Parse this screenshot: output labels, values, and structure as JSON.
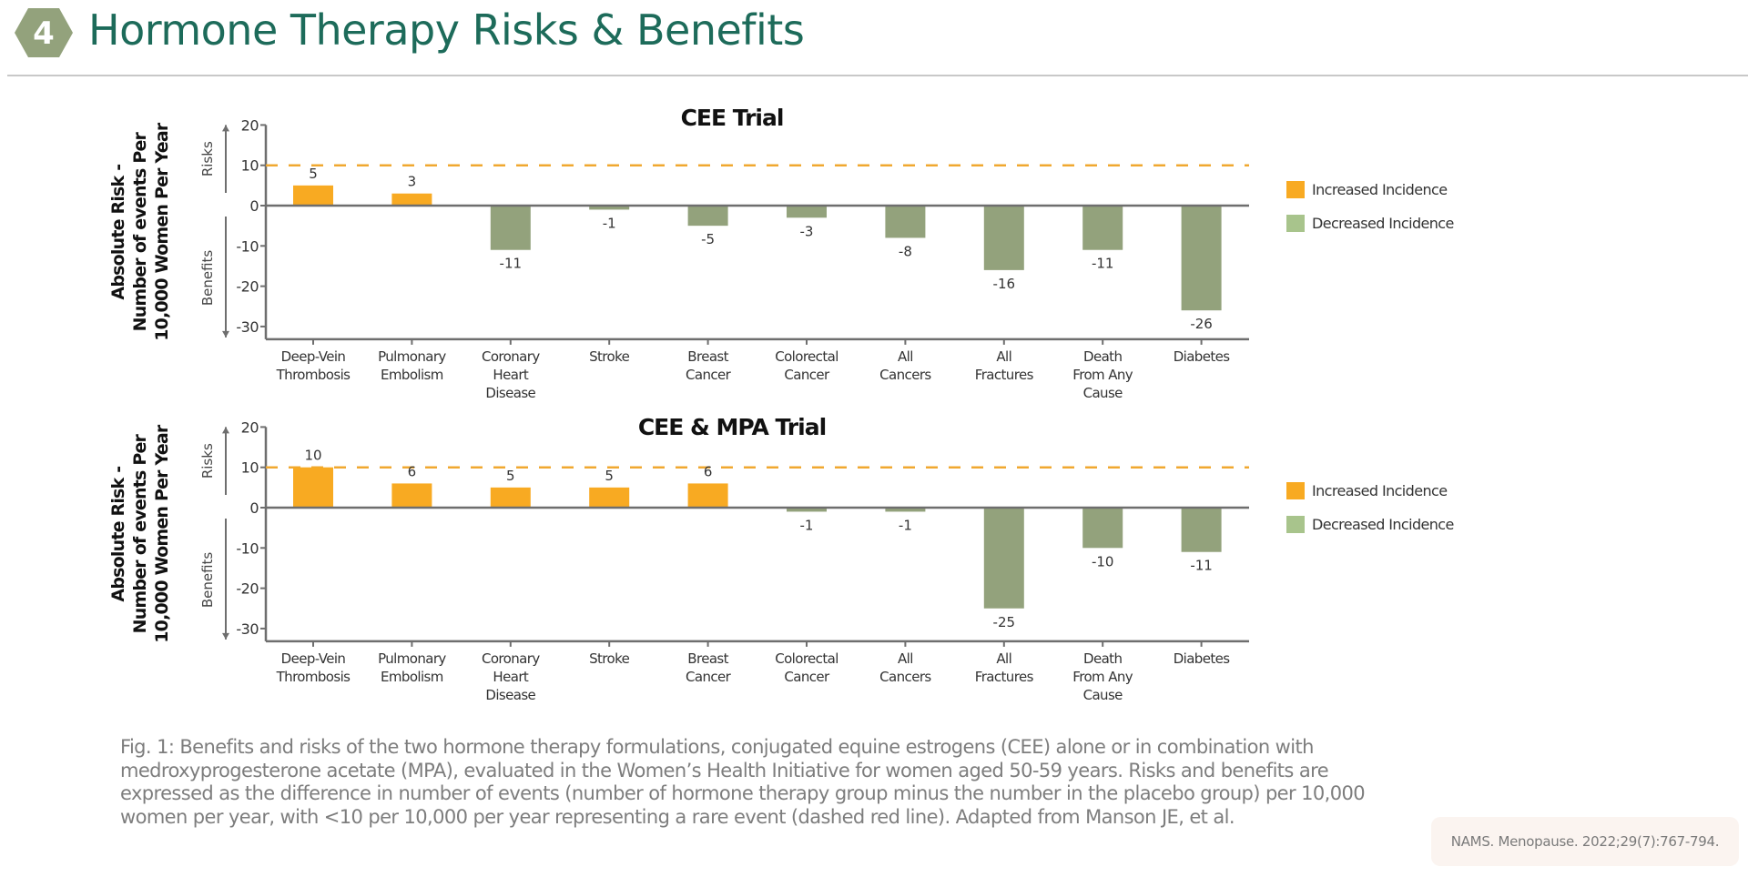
{
  "header": {
    "section_number": "4",
    "title": "Hormone Therapy Risks & Benefits"
  },
  "colors": {
    "title": "#1d6b5a",
    "hexagon": "#93a27c",
    "increased": "#f8aa22",
    "decreased_bar": "#93a27c",
    "decreased_legend": "#a8c48c",
    "rare_line": "#f0a830",
    "axis": "#6e6e6e"
  },
  "chart_data": [
    {
      "type": "bar",
      "title": "CEE Trial",
      "ylabel_lines": [
        "Absolute Risk -",
        "Number of events Per",
        "10,000 Women Per Year"
      ],
      "risks_label": "Risks",
      "benefits_label": "Benefits",
      "categories": [
        [
          "Deep-Vein",
          "Thrombosis"
        ],
        [
          "Pulmonary",
          "Embolism"
        ],
        [
          "Coronary",
          "Heart",
          "Disease"
        ],
        [
          "Stroke"
        ],
        [
          "Breast",
          "Cancer"
        ],
        [
          "Colorectal",
          "Cancer"
        ],
        [
          "All",
          "Cancers"
        ],
        [
          "All",
          "Fractures"
        ],
        [
          "Death",
          "From Any",
          "Cause"
        ],
        [
          "Diabetes"
        ]
      ],
      "values": [
        5,
        3,
        -11,
        -1,
        -5,
        -3,
        -8,
        -16,
        -11,
        -26
      ],
      "ylim": [
        -30,
        20
      ],
      "yticks": [
        20,
        10,
        0,
        -10,
        -20,
        -30
      ],
      "reference_line": 10,
      "legend": [
        {
          "label": "Increased Incidence",
          "key": "increased"
        },
        {
          "label": "Decreased Incidence",
          "key": "decreased"
        }
      ],
      "legend_position": "right"
    },
    {
      "type": "bar",
      "title": "CEE & MPA Trial",
      "ylabel_lines": [
        "Absolute Risk -",
        "Number of events Per",
        "10,000 Women Per Year"
      ],
      "risks_label": "Risks",
      "benefits_label": "Benefits",
      "categories": [
        [
          "Deep-Vein",
          "Thrombosis"
        ],
        [
          "Pulmonary",
          "Embolism"
        ],
        [
          "Coronary",
          "Heart",
          "Disease"
        ],
        [
          "Stroke"
        ],
        [
          "Breast",
          "Cancer"
        ],
        [
          "Colorectal",
          "Cancer"
        ],
        [
          "All",
          "Cancers"
        ],
        [
          "All",
          "Fractures"
        ],
        [
          "Death",
          "From Any",
          "Cause"
        ],
        [
          "Diabetes"
        ]
      ],
      "values": [
        10,
        6,
        5,
        5,
        6,
        -1,
        -1,
        -25,
        -10,
        -11
      ],
      "ylim": [
        -30,
        20
      ],
      "yticks": [
        20,
        10,
        0,
        -10,
        -20,
        -30
      ],
      "reference_line": 10,
      "legend": [
        {
          "label": "Increased Incidence",
          "key": "increased"
        },
        {
          "label": "Decreased Incidence",
          "key": "decreased"
        }
      ],
      "legend_position": "right"
    }
  ],
  "caption": "Fig. 1: Benefits and risks of the two hormone therapy formulations, conjugated equine estrogens (CEE) alone or in combination  with medroxyprogesterone acetate (MPA), evaluated in the Women’s Health Initiative for women aged 50-59 years. Risks and benefits are expressed as the difference in number of events (number of hormone therapy group minus the number in the placebo group) per 10,000 women per year, with <10 per 10,000 per year representing a rare event (dashed red line). Adapted from Manson JE, et al.",
  "citation": "NAMS. Menopause. 2022;29(7):767-794."
}
